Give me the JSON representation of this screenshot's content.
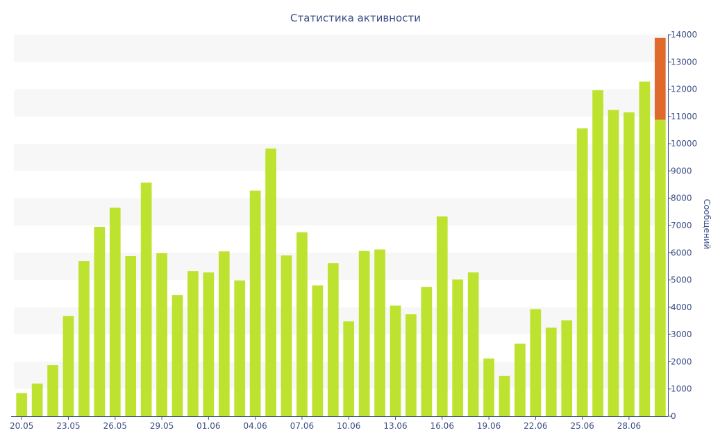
{
  "chart_data": {
    "type": "bar",
    "title": "Статистика активности",
    "ylabel": "Сообщений",
    "xlabel": "",
    "ylim": [
      0,
      14000
    ],
    "y_ticks": [
      0,
      1000,
      2000,
      3000,
      4000,
      5000,
      6000,
      7000,
      8000,
      9000,
      10000,
      11000,
      12000,
      13000,
      14000
    ],
    "y_axis_position": "right",
    "grid": "alternating horizontal bands",
    "categories": [
      "20.05",
      "21.05",
      "22.05",
      "23.05",
      "24.05",
      "25.05",
      "26.05",
      "27.05",
      "28.05",
      "29.05",
      "30.05",
      "31.05",
      "01.06",
      "02.06",
      "03.06",
      "04.06",
      "05.06",
      "06.06",
      "07.06",
      "08.06",
      "09.06",
      "10.06",
      "11.06",
      "12.06",
      "13.06",
      "14.06",
      "15.06",
      "16.06",
      "17.06",
      "18.06",
      "19.06",
      "20.06",
      "21.06",
      "22.06",
      "23.06",
      "24.06",
      "25.06",
      "26.06",
      "27.06",
      "28.06",
      "29.06",
      "30.06"
    ],
    "x_tick_labels": [
      "20.05",
      "23.05",
      "26.05",
      "29.05",
      "01.06",
      "04.06",
      "07.06",
      "10.06",
      "13.06",
      "16.06",
      "19.06",
      "22.06",
      "25.06",
      "28.06"
    ],
    "series": [
      {
        "color": "#bde22f",
        "values": [
          850,
          1200,
          1880,
          3680,
          5700,
          6950,
          7650,
          5880,
          8570,
          5980,
          4450,
          5320,
          5280,
          6050,
          4980,
          8280,
          9820,
          5900,
          6750,
          4800,
          5620,
          3480,
          6060,
          6120,
          4060,
          3740,
          4740,
          7330,
          5020,
          5280,
          2120,
          1480,
          2660,
          3930,
          3250,
          3520,
          10560,
          11960,
          11240,
          11150,
          12280,
          10880
        ]
      },
      {
        "color": "#e06a2c",
        "values": [
          0,
          0,
          0,
          0,
          0,
          0,
          0,
          0,
          0,
          0,
          0,
          0,
          0,
          0,
          0,
          0,
          0,
          0,
          0,
          0,
          0,
          0,
          0,
          0,
          0,
          0,
          0,
          0,
          0,
          0,
          0,
          0,
          0,
          0,
          0,
          0,
          0,
          0,
          0,
          0,
          0,
          3000
        ]
      }
    ],
    "colors": {
      "band": "#f7f7f7",
      "axis": "#3b4d86",
      "text": "#3b4d86"
    }
  }
}
